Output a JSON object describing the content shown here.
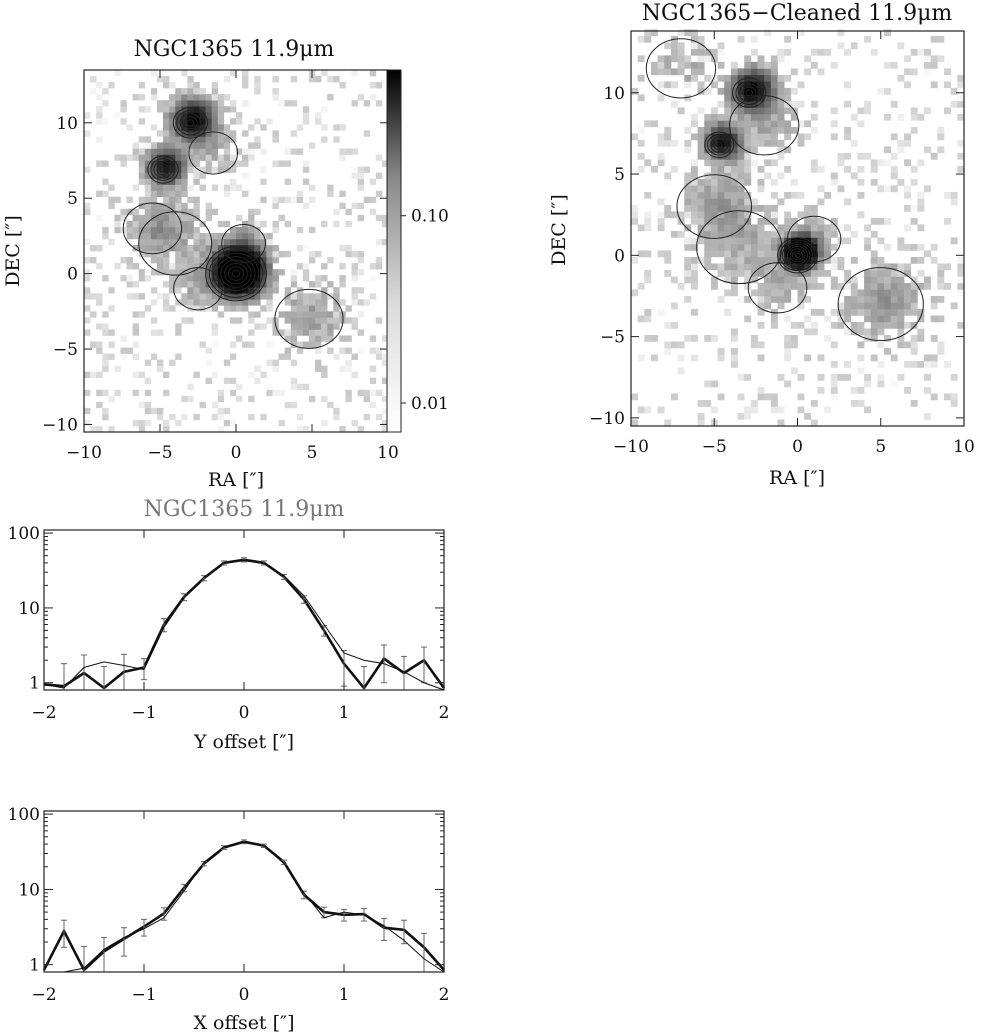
{
  "chart_data": [
    {
      "type": "heatmap",
      "id": "map-raw",
      "title": "NGC1365 11.9μm",
      "xlabel": "RA [″]",
      "ylabel": "DEC [″]",
      "xlim": [
        -10,
        10
      ],
      "ylim": [
        -10.5,
        13.5
      ],
      "xticks": [
        -10,
        -5,
        0,
        5,
        10
      ],
      "yticks": [
        -10,
        -5,
        0,
        5,
        10
      ],
      "colorbar": {
        "scale": "log",
        "ticks": [
          0.01,
          0.1
        ],
        "tick_labels": [
          "0.01",
          "0.10"
        ]
      },
      "sources": [
        {
          "x": 0,
          "y": 0,
          "peak": 1.0,
          "sigma": 1.0
        },
        {
          "x": -3,
          "y": 10,
          "peak": 0.45,
          "sigma": 0.9
        },
        {
          "x": -4.8,
          "y": 6.9,
          "peak": 0.4,
          "sigma": 0.8
        }
      ]
    },
    {
      "type": "heatmap",
      "id": "map-clean",
      "title": "NGC1365−Cleaned 11.9μm",
      "xlabel": "RA [″]",
      "ylabel": "DEC [″]",
      "xlim": [
        -10,
        10
      ],
      "ylim": [
        -10.5,
        13.8
      ],
      "xticks": [
        -10,
        -5,
        0,
        5,
        10
      ],
      "yticks": [
        -10,
        -5,
        0,
        5,
        10
      ],
      "sources": [
        {
          "x": 0,
          "y": 0,
          "peak": 1.0,
          "sigma": 0.6
        },
        {
          "x": -2.9,
          "y": 10,
          "peak": 0.45,
          "sigma": 0.8
        },
        {
          "x": -4.7,
          "y": 6.8,
          "peak": 0.4,
          "sigma": 0.7
        }
      ]
    },
    {
      "type": "line",
      "id": "profile-y",
      "title": "NGC1365 11.9μm",
      "xlabel": "Y offset [″]",
      "ylabel": "",
      "xlim": [
        -2,
        2
      ],
      "ylim": [
        0.8,
        110
      ],
      "yscale": "log",
      "xticks": [
        -2,
        -1,
        0,
        1,
        2
      ],
      "yticks": [
        1,
        10,
        100
      ],
      "x": [
        -2.0,
        -1.8,
        -1.6,
        -1.4,
        -1.2,
        -1.0,
        -0.8,
        -0.6,
        -0.4,
        -0.2,
        0.0,
        0.2,
        0.4,
        0.6,
        0.8,
        1.0,
        1.2,
        1.4,
        1.6,
        1.8,
        2.0
      ],
      "series": [
        {
          "values": [
            0.95,
            0.9,
            1.35,
            0.85,
            1.4,
            1.6,
            6.0,
            14.0,
            25.0,
            40.0,
            44.0,
            40.0,
            26.0,
            13.0,
            5.0,
            1.8,
            0.85,
            2.1,
            1.35,
            2.0,
            0.85
          ],
          "errors": [
            0,
            0.9,
            1.0,
            0.8,
            1.0,
            0.5,
            1.2,
            1.5,
            2.0,
            2.5,
            2.8,
            2.5,
            2.0,
            1.5,
            0.8,
            0.9,
            0.8,
            1.1,
            0.9,
            1.0,
            0
          ],
          "weight": "thick"
        },
        {
          "values": [
            0.95,
            0.85,
            1.6,
            1.9,
            1.7,
            1.5,
            5.5,
            13.5,
            26.0,
            40.0,
            43.0,
            39.0,
            27.0,
            14.5,
            6.0,
            2.5,
            2.0,
            1.8,
            1.4,
            1.0,
            0.8
          ],
          "weight": "thin"
        }
      ]
    },
    {
      "type": "line",
      "id": "profile-x",
      "title": "",
      "xlabel": "X offset [″]",
      "ylabel": "",
      "xlim": [
        -2,
        2
      ],
      "ylim": [
        0.8,
        110
      ],
      "yscale": "log",
      "xticks": [
        -2,
        -1,
        0,
        1,
        2
      ],
      "yticks": [
        1,
        10,
        100
      ],
      "x": [
        -2.0,
        -1.8,
        -1.6,
        -1.4,
        -1.2,
        -1.0,
        -0.8,
        -0.6,
        -0.4,
        -0.2,
        0.0,
        0.2,
        0.4,
        0.6,
        0.8,
        1.0,
        1.2,
        1.4,
        1.6,
        1.8,
        2.0
      ],
      "series": [
        {
          "values": [
            0.85,
            2.8,
            0.85,
            1.5,
            2.2,
            3.2,
            4.8,
            10.5,
            22.0,
            36.0,
            43.0,
            38.0,
            23.0,
            8.5,
            5.0,
            4.6,
            4.7,
            3.1,
            2.9,
            1.7,
            0.85
          ],
          "errors": [
            0,
            1.1,
            0.9,
            0.8,
            0.9,
            0.8,
            0.9,
            1.2,
            1.5,
            2.0,
            2.5,
            2.0,
            1.5,
            1.0,
            0.8,
            0.8,
            0.9,
            1.0,
            1.0,
            0.9,
            0
          ],
          "weight": "thick"
        },
        {
          "values": [
            0.8,
            0.8,
            0.9,
            1.6,
            2.3,
            3.0,
            4.2,
            9.5,
            23.0,
            37.0,
            42.0,
            38.0,
            22.0,
            9.0,
            4.2,
            5.0,
            4.6,
            3.3,
            2.1,
            1.2,
            0.8
          ],
          "weight": "thin"
        }
      ]
    }
  ]
}
